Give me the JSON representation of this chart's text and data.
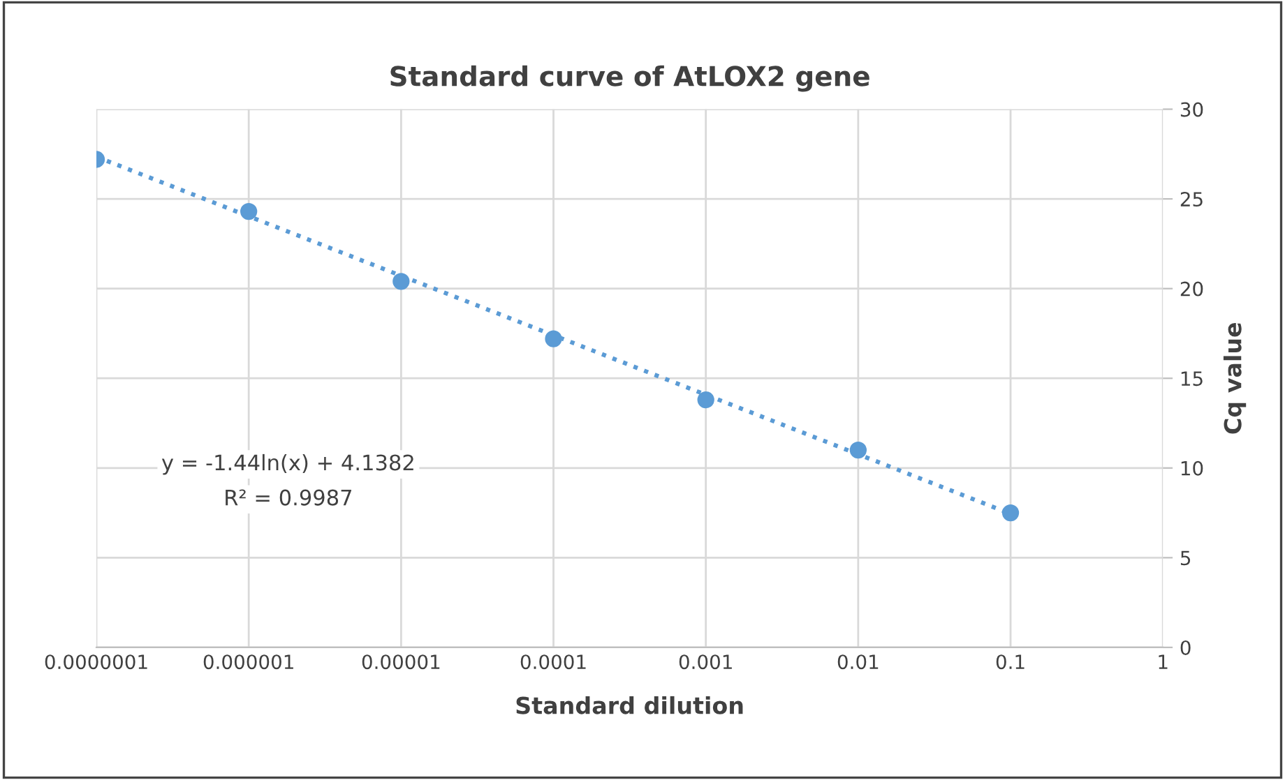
{
  "chart_data": {
    "type": "scatter",
    "title": "Standard curve of AtLOX2 gene",
    "xlabel": "Standard dilution",
    "ylabel": "Cq value",
    "log": "x",
    "xlim": [
      1e-07,
      1
    ],
    "xticks": [
      {
        "value": 1e-07,
        "label": "0.0000001"
      },
      {
        "value": 1e-06,
        "label": "0.000001"
      },
      {
        "value": 1e-05,
        "label": "0.00001"
      },
      {
        "value": 0.0001,
        "label": "0.0001"
      },
      {
        "value": 0.001,
        "label": "0.001"
      },
      {
        "value": 0.01,
        "label": "0.01"
      },
      {
        "value": 0.1,
        "label": "0.1"
      },
      {
        "value": 1,
        "label": "1"
      }
    ],
    "ylim": [
      0,
      30
    ],
    "yticks": [
      0,
      5,
      10,
      15,
      20,
      25,
      30
    ],
    "grid": true,
    "legend": false,
    "series": [
      {
        "color": "#5b9bd5",
        "marker": "circle",
        "x": [
          1e-07,
          1e-06,
          1e-05,
          0.0001,
          0.001,
          0.01,
          0.1
        ],
        "values": [
          27.2,
          24.3,
          20.4,
          17.2,
          13.8,
          11.0,
          7.5
        ]
      },
      {
        "type": "line",
        "color": "#5b9bd5",
        "line_style": "dotted",
        "marker": "none",
        "x": [
          1e-07,
          0.1
        ],
        "values": [
          27.35,
          7.45
        ]
      }
    ],
    "annotations": [
      "y = -1.44ln(x) + 4.1382",
      "R² = 0.9987"
    ]
  }
}
